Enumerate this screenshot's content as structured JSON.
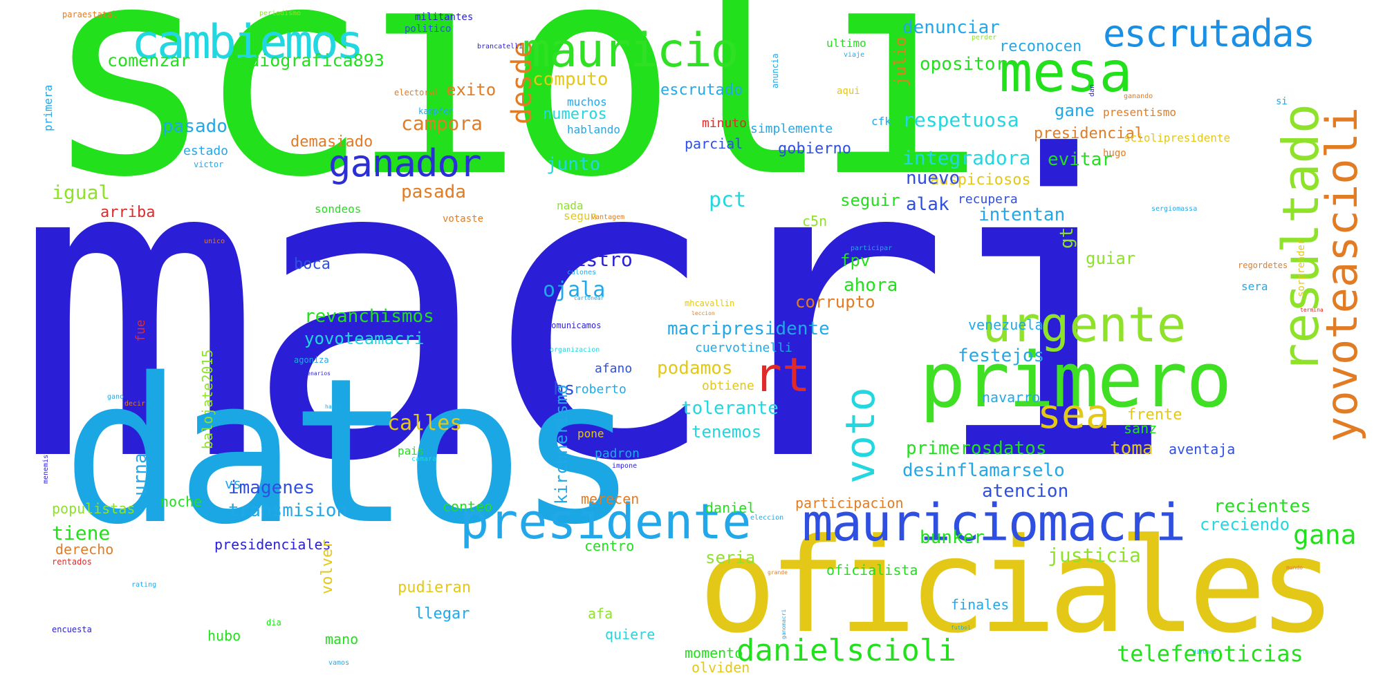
{
  "palette": {
    "green": "#22e01c",
    "blue": "#2a1fd6",
    "sky": "#1aa7e4",
    "gold": "#e3c818",
    "cyan": "#22d7e0",
    "orange": "#e27c24",
    "lime": "#8ee22a",
    "red": "#e02a2a",
    "royal": "#2f4fe0"
  },
  "words": [
    {
      "text": "scioli",
      "color": "#22e01c"
    },
    {
      "text": "macri",
      "color": "#2a1fd6"
    },
    {
      "text": "datos",
      "color": "#1aa7e4"
    },
    {
      "text": "oficiales",
      "color": "#e3c818"
    },
    {
      "text": "primero",
      "color": "#3fe024"
    },
    {
      "text": "presidente",
      "color": "#22a8e8"
    },
    {
      "text": "mauriciomacri",
      "color": "#2f4fe0"
    },
    {
      "text": "mauricio",
      "color": "#30e024"
    },
    {
      "text": "cambiemos",
      "color": "#22d7e0"
    },
    {
      "text": "mesa",
      "color": "#22e01c"
    },
    {
      "text": "escrutadas",
      "color": "#1a8fe4"
    },
    {
      "text": "ganador",
      "color": "#2a2fd6"
    },
    {
      "text": "urgente",
      "color": "#8ee22a"
    },
    {
      "text": "resultado",
      "color": "#8ee22a"
    },
    {
      "text": "yovoteascioli",
      "color": "#e27c24"
    },
    {
      "text": "sea",
      "color": "#e3c818"
    },
    {
      "text": "rt",
      "color": "#e02a2a"
    },
    {
      "text": "voto",
      "color": "#22d7e0"
    },
    {
      "text": "danielscioli",
      "color": "#22e01c"
    },
    {
      "text": "telefenoticias",
      "color": "#22e01c"
    },
    {
      "text": "gana",
      "color": "#22e01c"
    },
    {
      "text": "desde",
      "color": "#e27c24"
    },
    {
      "text": "radiografica893",
      "color": "#22e01c"
    },
    {
      "text": "comenzar",
      "color": "#22e01c"
    },
    {
      "text": "computo",
      "color": "#e3c818"
    },
    {
      "text": "exito",
      "color": "#e27c24"
    },
    {
      "text": "numeros",
      "color": "#22d7e0"
    },
    {
      "text": "campora",
      "color": "#e27c24"
    },
    {
      "text": "pasado",
      "color": "#22a8e8"
    },
    {
      "text": "demasiado",
      "color": "#e27c24"
    },
    {
      "text": "pasada",
      "color": "#e27c24"
    },
    {
      "text": "junto",
      "color": "#22d7e0"
    },
    {
      "text": "pct",
      "color": "#22d7e0"
    },
    {
      "text": "igual",
      "color": "#8ee22a"
    },
    {
      "text": "arriba",
      "color": "#e02a2a"
    },
    {
      "text": "denunciar",
      "color": "#22a8e8"
    },
    {
      "text": "reconocen",
      "color": "#22a8e8"
    },
    {
      "text": "opositor",
      "color": "#22e01c"
    },
    {
      "text": "respetuosa",
      "color": "#22d7e0"
    },
    {
      "text": "gane",
      "color": "#22a8e8"
    },
    {
      "text": "presidencial",
      "color": "#e27c24"
    },
    {
      "text": "integradora",
      "color": "#22d7e0"
    },
    {
      "text": "evitar",
      "color": "#22e01c"
    },
    {
      "text": "auspiciosos",
      "color": "#e3c818"
    },
    {
      "text": "nuevo",
      "color": "#2f4fe0"
    },
    {
      "text": "alak",
      "color": "#2f4fe0"
    },
    {
      "text": "recupera",
      "color": "#2f4fe0"
    },
    {
      "text": "intentan",
      "color": "#22a8e8"
    },
    {
      "text": "gt",
      "color": "#8ee22a"
    },
    {
      "text": "guiar",
      "color": "#8ee22a"
    },
    {
      "text": "ministro",
      "color": "#2a1fd6"
    },
    {
      "text": "fpv",
      "color": "#22e01c"
    },
    {
      "text": "ahora",
      "color": "#22e01c"
    },
    {
      "text": "corrupto",
      "color": "#e27c24"
    },
    {
      "text": "ojala",
      "color": "#22a8e8"
    },
    {
      "text": "macripresidente",
      "color": "#22a8e8"
    },
    {
      "text": "festejos",
      "color": "#22a8e8"
    },
    {
      "text": "podamos",
      "color": "#e3c818"
    },
    {
      "text": "tolerante",
      "color": "#22d7e0"
    },
    {
      "text": "tenemos",
      "color": "#22d7e0"
    },
    {
      "text": "primerosdatos",
      "color": "#22e01c"
    },
    {
      "text": "toma",
      "color": "#e3c818"
    },
    {
      "text": "desinflamarselo",
      "color": "#22a8e8"
    },
    {
      "text": "atencion",
      "color": "#2f4fe0"
    },
    {
      "text": "recientes",
      "color": "#22e01c"
    },
    {
      "text": "creciendo",
      "color": "#22d7e0"
    },
    {
      "text": "justicia",
      "color": "#8ee22a"
    },
    {
      "text": "bunker",
      "color": "#22e01c"
    },
    {
      "text": "revanchismos",
      "color": "#22e01c"
    },
    {
      "text": "yovoteamacri",
      "color": "#22d7e0"
    },
    {
      "text": "boca",
      "color": "#2f4fe0"
    },
    {
      "text": "calles",
      "color": "#e3c818"
    },
    {
      "text": "hs",
      "color": "#2f4fe0"
    },
    {
      "text": "kirchnerismo",
      "color": "#22a8e8"
    },
    {
      "text": "urna",
      "color": "#22a8e8"
    },
    {
      "text": "balojate2015",
      "color": "#8ee22a"
    },
    {
      "text": "tiene",
      "color": "#22e01c"
    },
    {
      "text": "imagenes",
      "color": "#2f4fe0"
    },
    {
      "text": "transmision",
      "color": "#22a8e8"
    },
    {
      "text": "presidenciales",
      "color": "#2a1fd6"
    },
    {
      "text": "populistas",
      "color": "#8ee22a"
    },
    {
      "text": "noche",
      "color": "#22e01c"
    },
    {
      "text": "volver",
      "color": "#e3c818"
    },
    {
      "text": "vs",
      "color": "#22a8e8"
    },
    {
      "text": "mano",
      "color": "#22e01c"
    },
    {
      "text": "hubo",
      "color": "#22e01c"
    },
    {
      "text": "derecho",
      "color": "#e27c24"
    },
    {
      "text": "conteo",
      "color": "#22e01c"
    },
    {
      "text": "merecen",
      "color": "#e27c24"
    },
    {
      "text": "centro",
      "color": "#22e01c"
    },
    {
      "text": "pudieran",
      "color": "#e3c818"
    },
    {
      "text": "llegar",
      "color": "#22a8e8"
    },
    {
      "text": "quiere",
      "color": "#22d7e0"
    },
    {
      "text": "afa",
      "color": "#8ee22a"
    },
    {
      "text": "momento",
      "color": "#22e01c"
    },
    {
      "text": "olviden",
      "color": "#e3c818"
    },
    {
      "text": "seria",
      "color": "#8ee22a"
    },
    {
      "text": "daniel",
      "color": "#22e01c"
    },
    {
      "text": "participacion",
      "color": "#e27c24"
    },
    {
      "text": "oficialista",
      "color": "#22e01c"
    },
    {
      "text": "finales",
      "color": "#22a8e8"
    },
    {
      "text": "aventaja",
      "color": "#2f4fe0"
    },
    {
      "text": "sanz",
      "color": "#22e01c"
    },
    {
      "text": "frente",
      "color": "#e3c818"
    },
    {
      "text": "navarro",
      "color": "#22a8e8"
    },
    {
      "text": "venezuela",
      "color": "#22a8e8"
    },
    {
      "text": "cuervotinelli",
      "color": "#22a8e8"
    },
    {
      "text": "seguir",
      "color": "#22e01c"
    },
    {
      "text": "c5n",
      "color": "#8ee22a"
    },
    {
      "text": "gobierno",
      "color": "#2f4fe0"
    },
    {
      "text": "simplemente",
      "color": "#22a8e8"
    },
    {
      "text": "parcial",
      "color": "#2f4fe0"
    },
    {
      "text": "minuto",
      "color": "#e02a2a"
    },
    {
      "text": "escrutado",
      "color": "#22a8e8"
    },
    {
      "text": "julio",
      "color": "#e27c24"
    },
    {
      "text": "presentismo",
      "color": "#e27c24"
    },
    {
      "text": "sciolipresidente",
      "color": "#e3c818"
    },
    {
      "text": "cfk",
      "color": "#22a8e8"
    },
    {
      "text": "muchos",
      "color": "#22a8e8"
    },
    {
      "text": "hablando",
      "color": "#22a8e8"
    },
    {
      "text": "estado",
      "color": "#22a8e8"
    },
    {
      "text": "sondeos",
      "color": "#22e01c"
    },
    {
      "text": "fue",
      "color": "#e02a2a"
    },
    {
      "text": "nada",
      "color": "#8ee22a"
    },
    {
      "text": "segun",
      "color": "#e3c818"
    },
    {
      "text": "afano",
      "color": "#2f4fe0"
    },
    {
      "text": "roberto",
      "color": "#22a8e8"
    },
    {
      "text": "obtiene",
      "color": "#e3c818"
    },
    {
      "text": "padron",
      "color": "#22a8e8"
    },
    {
      "text": "pone",
      "color": "#e3c818"
    },
    {
      "text": "pais",
      "color": "#22e01c"
    },
    {
      "text": "sera",
      "color": "#22a8e8"
    },
    {
      "text": "hugo",
      "color": "#e27c24"
    },
    {
      "text": "ultimo",
      "color": "#22e01c"
    },
    {
      "text": "aqui",
      "color": "#e3c818"
    },
    {
      "text": "si",
      "color": "#22a8e8"
    },
    {
      "text": "primera",
      "color": "#22a8e8"
    },
    {
      "text": "politico",
      "color": "#2f4fe0"
    },
    {
      "text": "militantes",
      "color": "#2a1fd6"
    },
    {
      "text": "paraestatal",
      "color": "#e27c24"
    },
    {
      "text": "periodismo",
      "color": "#8ee22a"
    },
    {
      "text": "brancatelli",
      "color": "#2a1fd6"
    },
    {
      "text": "anuncia",
      "color": "#22a8e8"
    },
    {
      "text": "viaje",
      "color": "#22a8e8"
    },
    {
      "text": "perder",
      "color": "#8ee22a"
    },
    {
      "text": "dan",
      "color": "#2a1fd6"
    },
    {
      "text": "ganando",
      "color": "#e27c24"
    },
    {
      "text": "kampfer",
      "color": "#22a8e8"
    },
    {
      "text": "electoral",
      "color": "#e27c24"
    },
    {
      "text": "victor",
      "color": "#22a8e8"
    },
    {
      "text": "votaste",
      "color": "#e27c24"
    },
    {
      "text": "vantagem",
      "color": "#e27c24"
    },
    {
      "text": "unico",
      "color": "#e27c24"
    },
    {
      "text": "sorprender",
      "color": "#e3c818"
    },
    {
      "text": "regordetes",
      "color": "#e27c24"
    },
    {
      "text": "sergiomassa",
      "color": "#22a8e8"
    },
    {
      "text": "comunicamos",
      "color": "#2a1fd6"
    },
    {
      "text": "organizacion",
      "color": "#22d7e0"
    },
    {
      "text": "agoniza",
      "color": "#22a8e8"
    },
    {
      "text": "mercenarios",
      "color": "#2a1fd6"
    },
    {
      "text": "impone",
      "color": "#2a1fd6"
    },
    {
      "text": "camara",
      "color": "#22d7e0"
    },
    {
      "text": "decir",
      "color": "#e27c24"
    },
    {
      "text": "gano",
      "color": "#22a8e8"
    },
    {
      "text": "habia",
      "color": "#22a8e8"
    },
    {
      "text": "menemista",
      "color": "#2a1fd6"
    },
    {
      "text": "encuesta",
      "color": "#2a1fd6"
    },
    {
      "text": "rentados",
      "color": "#e02a2a"
    },
    {
      "text": "rating",
      "color": "#22a8e8"
    },
    {
      "text": "dia",
      "color": "#22e01c"
    },
    {
      "text": "vamos",
      "color": "#22a8e8"
    },
    {
      "text": "eleccion",
      "color": "#22a8e8"
    },
    {
      "text": "grande",
      "color": "#e27c24"
    },
    {
      "text": "ganomacri",
      "color": "#22a8e8"
    },
    {
      "text": "mhcavallin",
      "color": "#e3c818"
    },
    {
      "text": "leccion",
      "color": "#e27c24"
    },
    {
      "text": "cartonear",
      "color": "#22a8e8"
    },
    {
      "text": "participar",
      "color": "#22a8e8"
    },
    {
      "text": "culones",
      "color": "#22a8e8"
    },
    {
      "text": "termina",
      "color": "#e02a2a"
    },
    {
      "text": "mundo",
      "color": "#e27c24"
    },
    {
      "text": "futbol",
      "color": "#22a8e8"
    },
    {
      "text": "difunde",
      "color": "#22a8e8"
    }
  ]
}
